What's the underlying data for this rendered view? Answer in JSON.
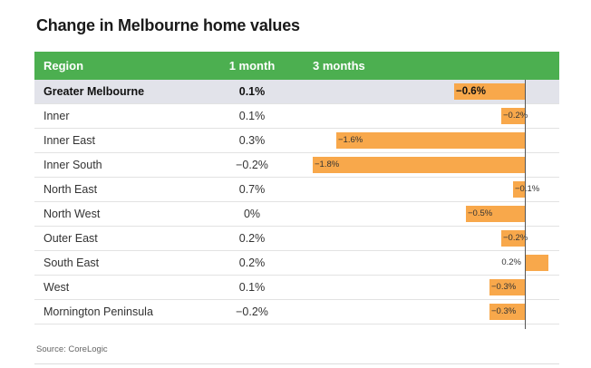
{
  "title": "Change in Melbourne home values",
  "source": "Source: CoreLogic",
  "colors": {
    "header": "#4caf50",
    "bar": "#f8a84b",
    "highlight_row": "#e2e3ea"
  },
  "table": {
    "headers": {
      "region": "Region",
      "one_month": "1 month",
      "three_months": "3 months"
    },
    "rows": [
      {
        "region": "Greater Melbourne",
        "one_month": "0.1%",
        "three_months": "−0.6%",
        "highlight": true
      },
      {
        "region": "Inner",
        "one_month": "0.1%",
        "three_months": "−0.2%"
      },
      {
        "region": "Inner East",
        "one_month": "0.3%",
        "three_months": "−1.6%"
      },
      {
        "region": "Inner South",
        "one_month": "−0.2%",
        "three_months": "−1.8%"
      },
      {
        "region": "North East",
        "one_month": "0.7%",
        "three_months": "−0.1%"
      },
      {
        "region": "North West",
        "one_month": "0%",
        "three_months": "−0.5%"
      },
      {
        "region": "Outer East",
        "one_month": "0.2%",
        "three_months": "−0.2%"
      },
      {
        "region": "South East",
        "one_month": "0.2%",
        "three_months": "0.2%"
      },
      {
        "region": "West",
        "one_month": "0.1%",
        "three_months": "−0.3%"
      },
      {
        "region": "Mornington Peninsula",
        "one_month": "−0.2%",
        "three_months": "−0.3%"
      }
    ]
  },
  "chart_data": {
    "type": "table",
    "title": "Change in Melbourne home values",
    "columns": [
      "Region",
      "1 month",
      "3 months"
    ],
    "categories": [
      "Greater Melbourne",
      "Inner",
      "Inner East",
      "Inner South",
      "North East",
      "North West",
      "Outer East",
      "South East",
      "West",
      "Mornington Peninsula"
    ],
    "series": [
      {
        "name": "1 month",
        "values": [
          0.1,
          0.1,
          0.3,
          -0.2,
          0.7,
          0.0,
          0.2,
          0.2,
          0.1,
          -0.2
        ]
      },
      {
        "name": "3 months",
        "values": [
          -0.6,
          -0.2,
          -1.6,
          -1.8,
          -0.1,
          -0.5,
          -0.2,
          0.2,
          -0.3,
          -0.3
        ]
      }
    ],
    "bar_series": "3 months",
    "unit": "%",
    "source": "Source: CoreLogic"
  }
}
